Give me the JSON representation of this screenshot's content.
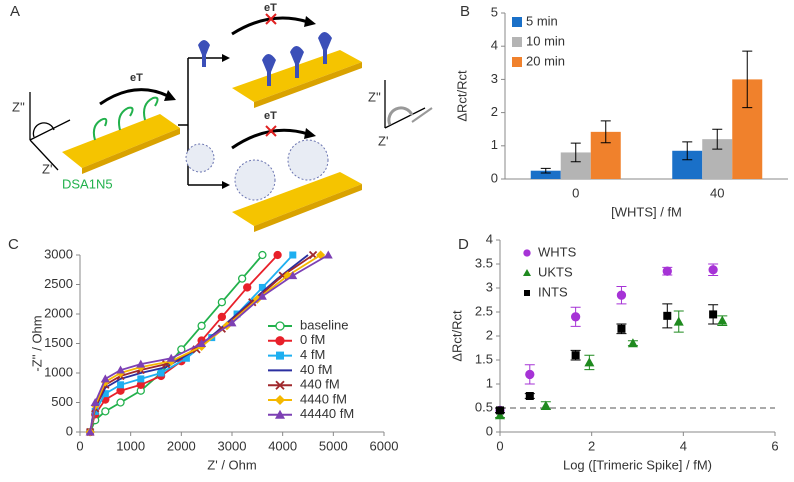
{
  "diagram": {
    "label": "A",
    "eT_top": "eT",
    "eT_left": "eT",
    "eT_bottom": "eT",
    "z2_left": "Z''",
    "z1_left": "Z'",
    "z2_right": "Z''",
    "z1_right": "Z'",
    "probe": "DSA1N5"
  },
  "chart_data": [
    {
      "type": "bar",
      "panel_label": "B",
      "ylabel": "ΔRct/Rct",
      "xlabel": "[WHTS] / fM",
      "categories": [
        "0",
        "40"
      ],
      "ylim": [
        0,
        5
      ],
      "yticks": [
        0,
        1,
        2,
        3,
        4,
        5
      ],
      "series": [
        {
          "name": "5 min",
          "color": "#1a70c8",
          "values": [
            0.25,
            0.85
          ],
          "errors": [
            0.07,
            0.27
          ]
        },
        {
          "name": "10 min",
          "color": "#b4b4b4",
          "values": [
            0.8,
            1.2
          ],
          "errors": [
            0.28,
            0.3
          ]
        },
        {
          "name": "20 min",
          "color": "#f0812c",
          "values": [
            1.42,
            3.0
          ],
          "errors": [
            0.33,
            0.85
          ]
        }
      ]
    },
    {
      "type": "line",
      "panel_label": "C",
      "ylabel": "-Z'' / Ohm",
      "xlabel": "Z' / Ohm",
      "xlim": [
        0,
        6000
      ],
      "xticks": [
        0,
        1000,
        2000,
        3000,
        4000,
        5000,
        6000
      ],
      "ylim": [
        0,
        3000
      ],
      "yticks": [
        0,
        500,
        1000,
        1500,
        2000,
        2500,
        3000
      ],
      "series": [
        {
          "name": "baseline",
          "color": "#22b14c",
          "marker": "open-circle",
          "x": [
            200,
            300,
            500,
            800,
            1200,
            1600,
            2000,
            2400,
            2800,
            3200,
            3600
          ],
          "values": [
            0,
            200,
            350,
            500,
            700,
            1000,
            1400,
            1800,
            2200,
            2600,
            3000
          ]
        },
        {
          "name": "0 fM",
          "color": "#e8202a",
          "marker": "circle",
          "x": [
            200,
            300,
            500,
            800,
            1200,
            1600,
            2000,
            2400,
            2800,
            3300,
            3900
          ],
          "values": [
            0,
            300,
            550,
            700,
            800,
            950,
            1200,
            1550,
            1950,
            2450,
            3000
          ]
        },
        {
          "name": "4 fM",
          "color": "#1eaff0",
          "marker": "square",
          "x": [
            200,
            300,
            500,
            800,
            1200,
            1600,
            2100,
            2600,
            3100,
            3600,
            4200
          ],
          "values": [
            0,
            350,
            650,
            800,
            900,
            1000,
            1250,
            1600,
            2000,
            2450,
            3000
          ]
        },
        {
          "name": "40 fM",
          "color": "#2b2fa0",
          "marker": "none",
          "x": [
            200,
            300,
            500,
            800,
            1200,
            1700,
            2200,
            2700,
            3300,
            3900,
            4500
          ],
          "values": [
            0,
            400,
            750,
            900,
            1000,
            1100,
            1350,
            1700,
            2150,
            2600,
            3000
          ]
        },
        {
          "name": "440 fM",
          "color": "#a0282d",
          "marker": "cross",
          "x": [
            200,
            300,
            500,
            800,
            1200,
            1700,
            2300,
            2800,
            3400,
            4000,
            4600
          ],
          "values": [
            0,
            400,
            800,
            950,
            1050,
            1150,
            1400,
            1750,
            2200,
            2650,
            3000
          ]
        },
        {
          "name": "4440 fM",
          "color": "#f5b800",
          "marker": "diamond",
          "x": [
            200,
            300,
            500,
            800,
            1200,
            1800,
            2400,
            2900,
            3500,
            4100,
            4750
          ],
          "values": [
            0,
            450,
            850,
            1000,
            1100,
            1200,
            1450,
            1800,
            2250,
            2650,
            3000
          ]
        },
        {
          "name": "44440 fM",
          "color": "#7d40b4",
          "marker": "triangle",
          "x": [
            200,
            300,
            500,
            800,
            1200,
            1800,
            2400,
            3000,
            3600,
            4200,
            4900
          ],
          "values": [
            0,
            500,
            900,
            1050,
            1150,
            1250,
            1500,
            1850,
            2300,
            2650,
            3000
          ]
        }
      ]
    },
    {
      "type": "scatter",
      "panel_label": "D",
      "ylabel": "ΔRct/Rct",
      "xlabel": "Log ([Trimeric Spike] / fM)",
      "xlim": [
        0,
        6
      ],
      "xticks": [
        0,
        2,
        4,
        6
      ],
      "ylim": [
        0,
        4
      ],
      "yticks": [
        0,
        0.5,
        1,
        1.5,
        2,
        2.5,
        3,
        3.5,
        4
      ],
      "reference_line": 0.5,
      "series": [
        {
          "name": "WHTS",
          "color": "#a633d6",
          "marker": "circle",
          "x": [
            0,
            0.65,
            1.65,
            2.65,
            3.65,
            4.65
          ],
          "values": [
            0.45,
            1.2,
            2.4,
            2.85,
            3.35,
            3.38
          ],
          "errors": [
            0.05,
            0.2,
            0.2,
            0.18,
            0.08,
            0.12
          ]
        },
        {
          "name": "UKTS",
          "color": "#1f8a1f",
          "marker": "triangle",
          "x": [
            0,
            1,
            1.95,
            2.9,
            3.9,
            4.85
          ],
          "values": [
            0.35,
            0.55,
            1.45,
            1.85,
            2.3,
            2.32
          ],
          "errors": [
            0.05,
            0.08,
            0.15,
            0.05,
            0.22,
            0.1
          ]
        },
        {
          "name": "INTS",
          "color": "#000000",
          "marker": "square",
          "x": [
            0,
            0.65,
            1.65,
            2.65,
            3.65,
            4.65
          ],
          "values": [
            0.45,
            0.75,
            1.6,
            2.15,
            2.42,
            2.45
          ],
          "errors": [
            0.05,
            0.05,
            0.1,
            0.1,
            0.25,
            0.2
          ]
        }
      ]
    }
  ]
}
